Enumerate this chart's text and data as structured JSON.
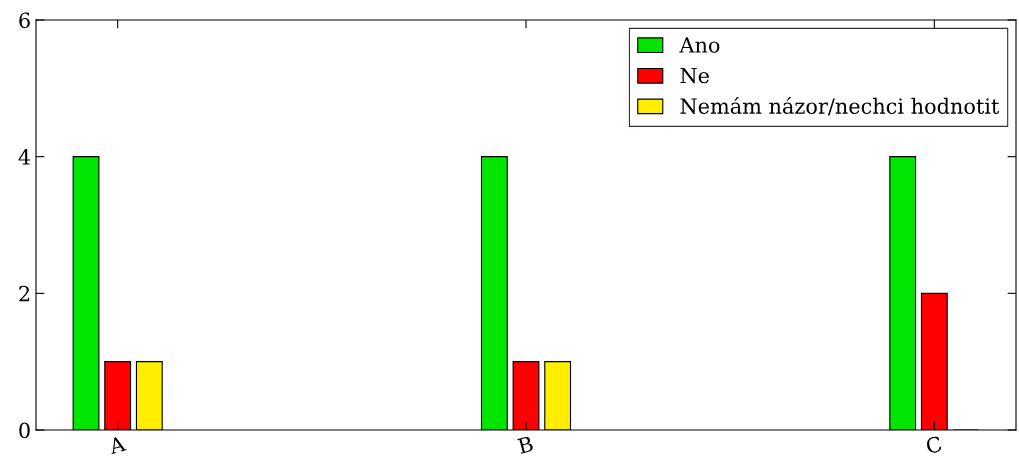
{
  "chart_data": {
    "type": "bar",
    "categories": [
      "A",
      "B",
      "C"
    ],
    "series": [
      {
        "name": "Ano",
        "color": "#00e600",
        "values": [
          4,
          4,
          4
        ]
      },
      {
        "name": "Ne",
        "color": "#ff0000",
        "values": [
          1,
          1,
          2
        ]
      },
      {
        "name": "Nemám názor/nechci hodnotit",
        "color": "#ffee00",
        "values": [
          1,
          1,
          0
        ]
      }
    ],
    "ylim": [
      0,
      6
    ],
    "yticks": [
      0,
      2,
      4,
      6
    ],
    "legend": "top right",
    "grid": false
  }
}
